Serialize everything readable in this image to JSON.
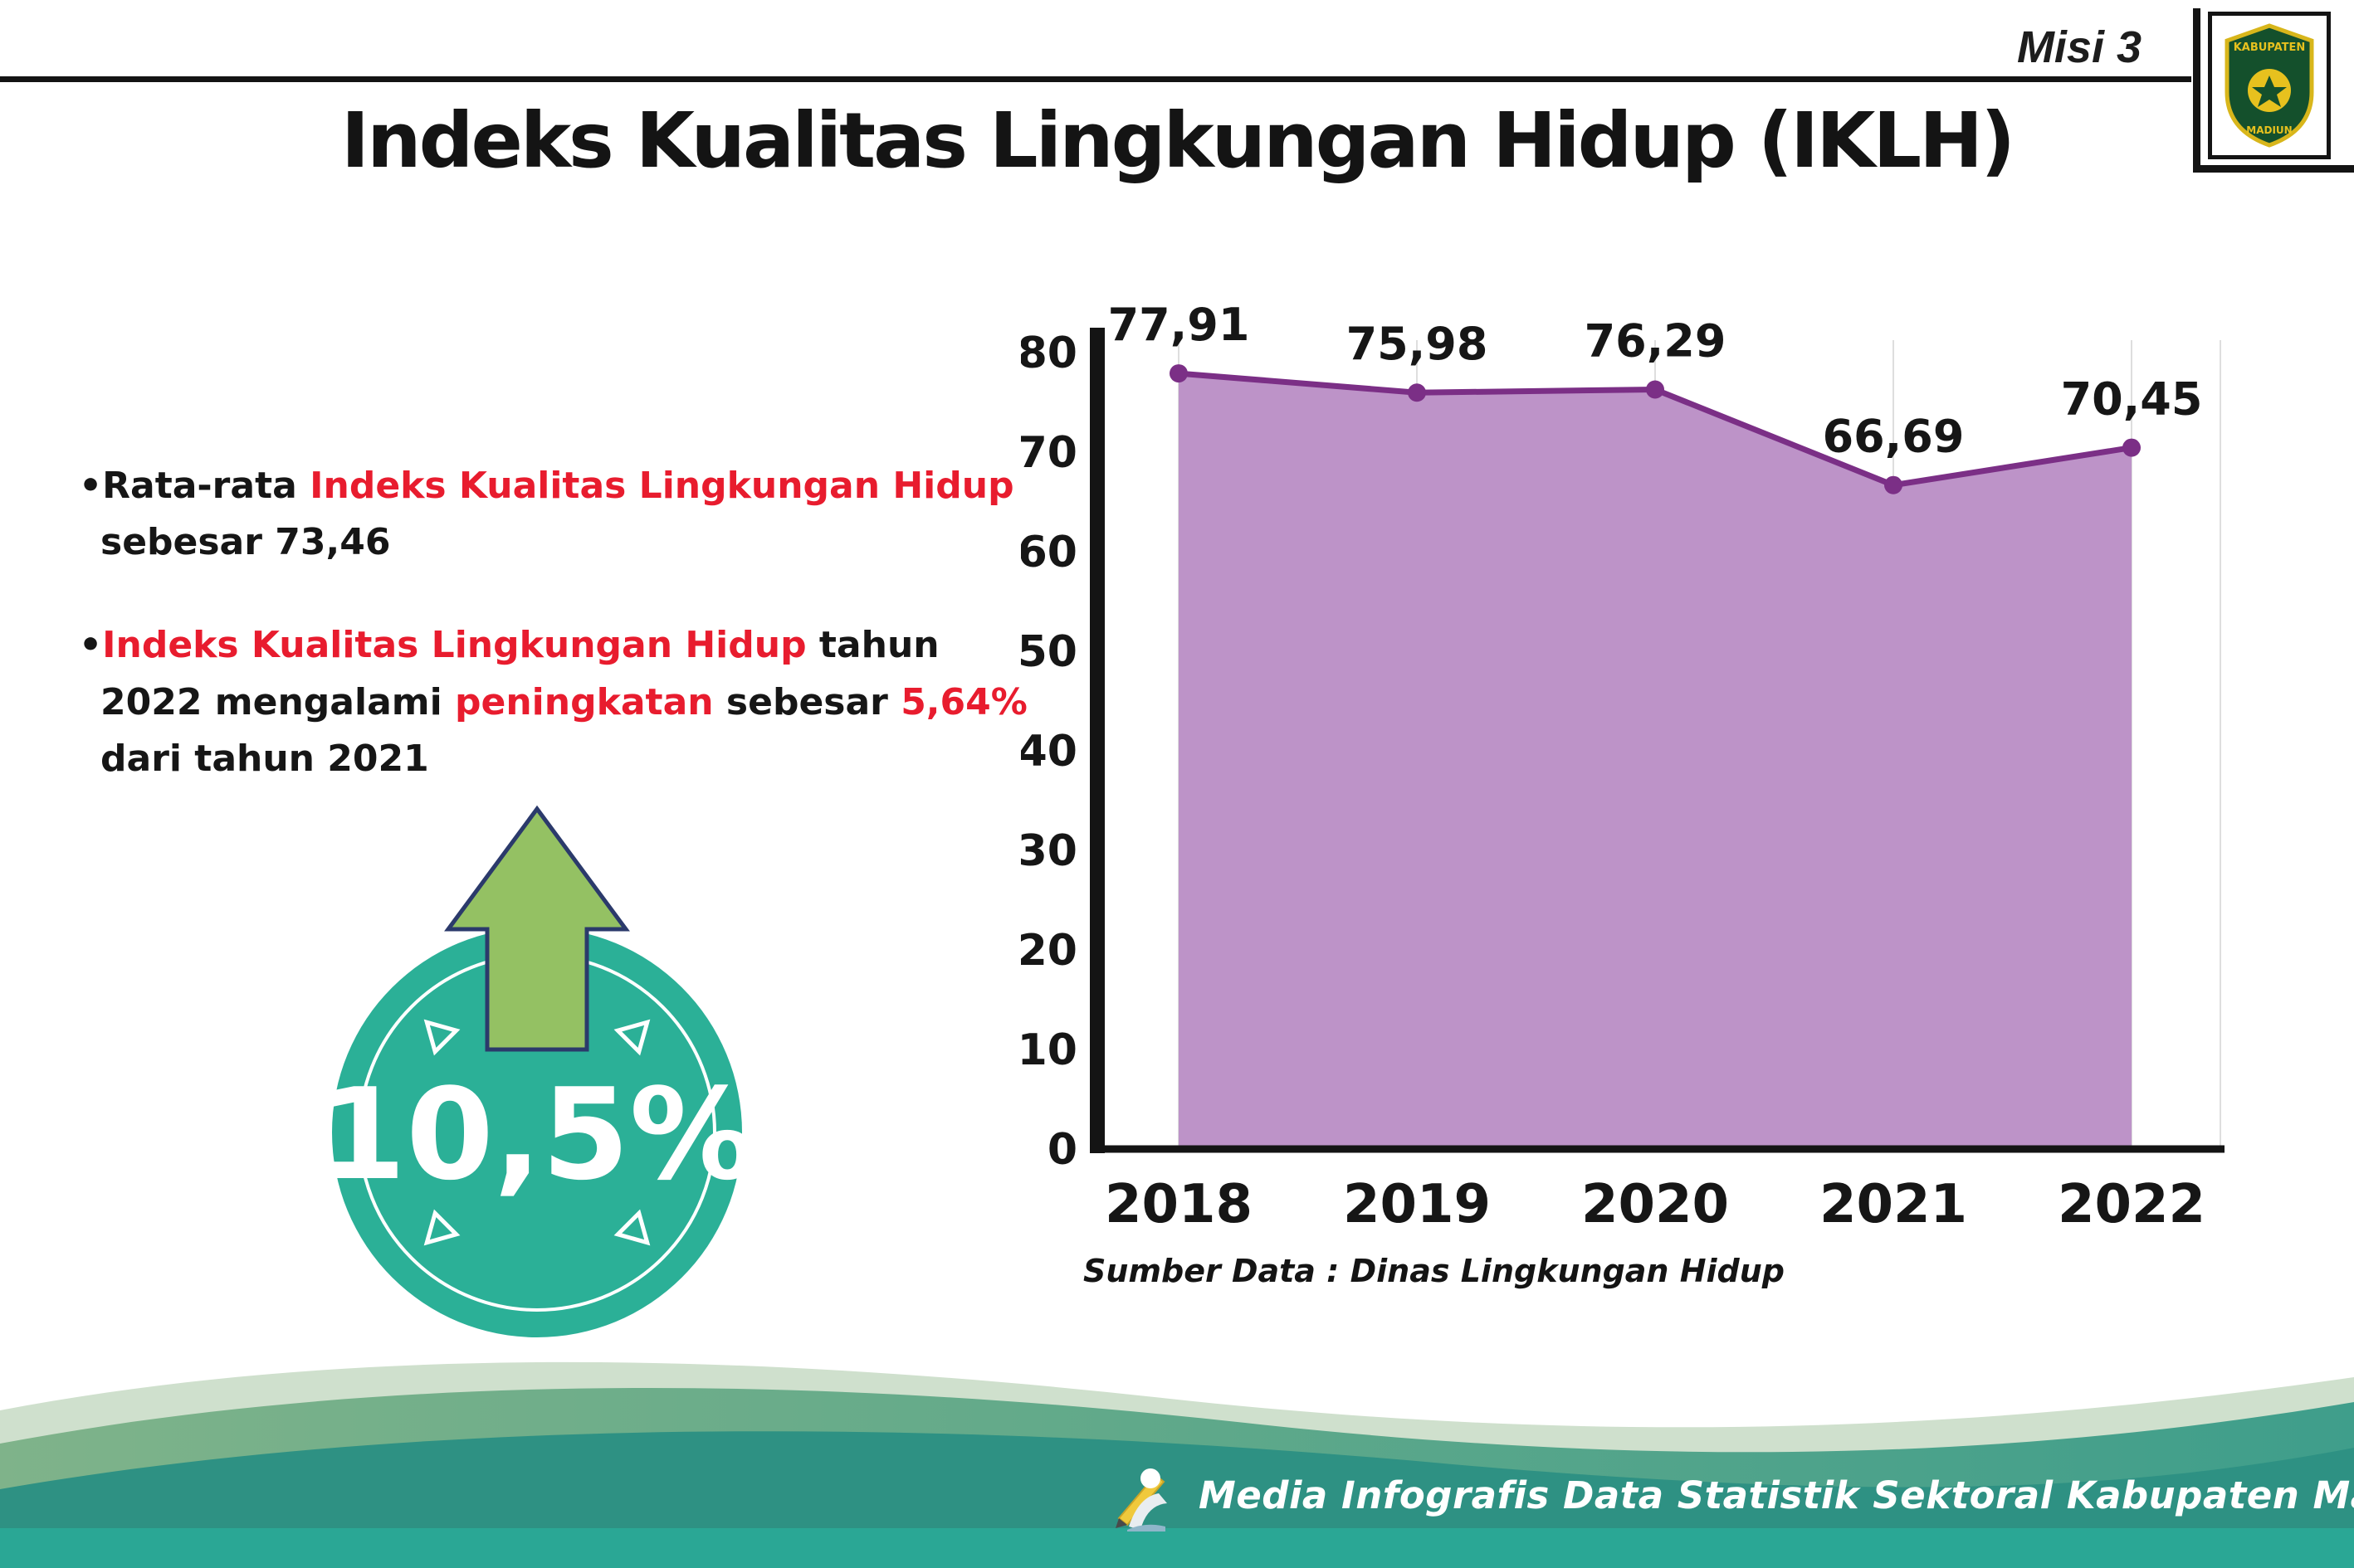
{
  "header": {
    "misi_label": "Misi 3",
    "title": "Indeks Kualitas Lingkungan Hidup (IKLH)",
    "logo": {
      "top_text": "KABUPATEN",
      "bottom_text": "MADIUN"
    }
  },
  "bullets": [
    {
      "segments": [
        {
          "text": "Rata-rata ",
          "emphasis": false
        },
        {
          "text": "Indeks Kualitas Lingkungan Hidup",
          "emphasis": true
        },
        {
          "text": " sebesar 73,46",
          "emphasis": false
        }
      ]
    },
    {
      "segments": [
        {
          "text": "Indeks Kualitas Lingkungan Hidup",
          "emphasis": true
        },
        {
          "text": " tahun 2022 mengalami ",
          "emphasis": false
        },
        {
          "text": "peningkatan",
          "emphasis": true
        },
        {
          "text": " sebesar ",
          "emphasis": false
        },
        {
          "text": "5,64%",
          "emphasis": true
        },
        {
          "text": " dari tahun 2021",
          "emphasis": false
        }
      ]
    }
  ],
  "badge": {
    "value": "10,5%",
    "circle_color": "#2bb097",
    "arrow_color": "#94c163",
    "arrow_outline": "#2b3a6b"
  },
  "chart_data": {
    "type": "area",
    "categories": [
      "2018",
      "2019",
      "2020",
      "2021",
      "2022"
    ],
    "values": [
      77.91,
      75.98,
      76.29,
      66.69,
      70.45
    ],
    "value_labels": [
      "77,91",
      "75,98",
      "76,29",
      "66,69",
      "70,45"
    ],
    "ylim": [
      0,
      80
    ],
    "yticks": [
      0,
      10,
      20,
      30,
      40,
      50,
      60,
      70,
      80
    ],
    "grid": "vertical",
    "legend": "none",
    "title": "",
    "xlabel": "",
    "ylabel": "",
    "fill_color": "#bd93c8",
    "line_color": "#7b2f86",
    "source": "Sumber Data : Dinas Lingkungan Hidup"
  },
  "footer": {
    "text": "Media Infografis Data Statistik Sektoral Kabupaten Madiun |"
  },
  "colors": {
    "red_accent": "#e81c2e",
    "footer_teal": "#2aa795",
    "footer_dark": "#2e9183",
    "footer_green": "#74ab85"
  }
}
